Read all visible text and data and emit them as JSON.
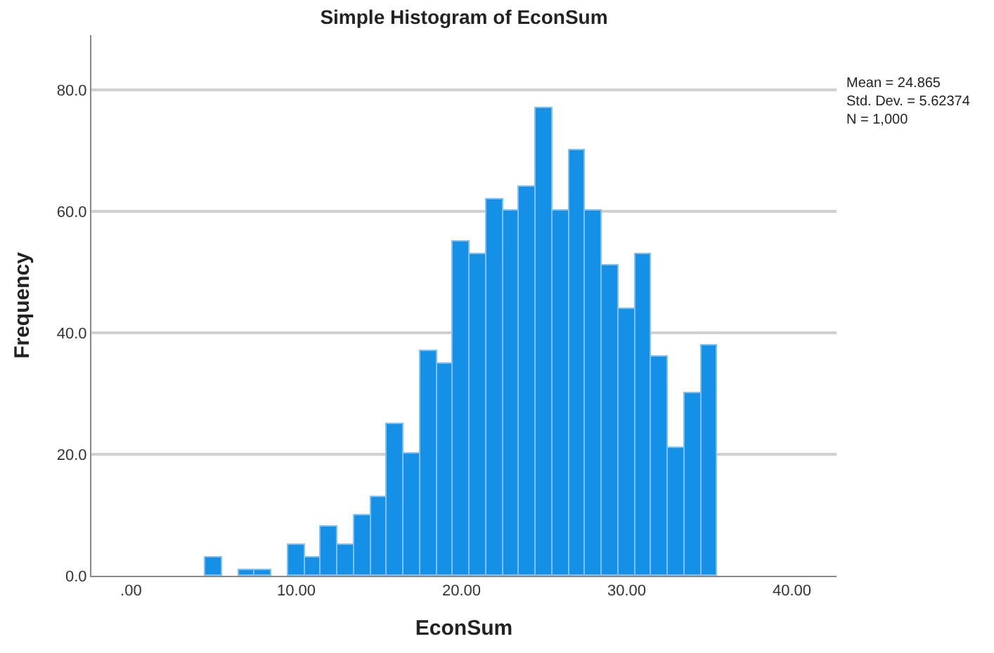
{
  "chart_data": {
    "type": "histogram",
    "title": "Simple Histogram of EconSum",
    "xlabel": "EconSum",
    "ylabel": "Frequency",
    "bins": [
      4.5,
      5.5,
      6.5,
      7.5,
      8.5,
      9.5,
      10.5,
      11.5,
      12.5,
      13.5,
      14.5,
      15.5,
      16.5,
      17.5,
      18.5,
      19.5,
      20.5,
      21.5,
      22.5,
      23.5,
      24.5,
      25.5,
      26.5,
      27.5,
      28.5,
      29.5,
      30.5,
      31.5,
      32.5,
      33.5,
      34.5,
      35.5
    ],
    "values": [
      3,
      0,
      1,
      1,
      0,
      5,
      3,
      8,
      5,
      10,
      13,
      25,
      20,
      37,
      35,
      55,
      53,
      62,
      60,
      64,
      77,
      60,
      70,
      60,
      51,
      44,
      53,
      36,
      21,
      30,
      38
    ],
    "color": "#1490e6",
    "xlim": [
      -2.4,
      42.7
    ],
    "xticks": [
      {
        "value": 0,
        "label": ".00"
      },
      {
        "value": 10,
        "label": "10.00"
      },
      {
        "value": 20,
        "label": "20.00"
      },
      {
        "value": 30,
        "label": "30.00"
      },
      {
        "value": 40,
        "label": "40.00"
      }
    ],
    "ylim": [
      0,
      89
    ],
    "yticks": [
      {
        "value": 0,
        "label": "0.0"
      },
      {
        "value": 20,
        "label": "20.0"
      },
      {
        "value": 40,
        "label": "40.0"
      },
      {
        "value": 60,
        "label": "60.0"
      },
      {
        "value": 80,
        "label": "80.0"
      }
    ],
    "grid": "y",
    "annotations": [
      "Mean = 24.865\nStd. Dev. = 5.62374\nN = 1,000"
    ]
  }
}
